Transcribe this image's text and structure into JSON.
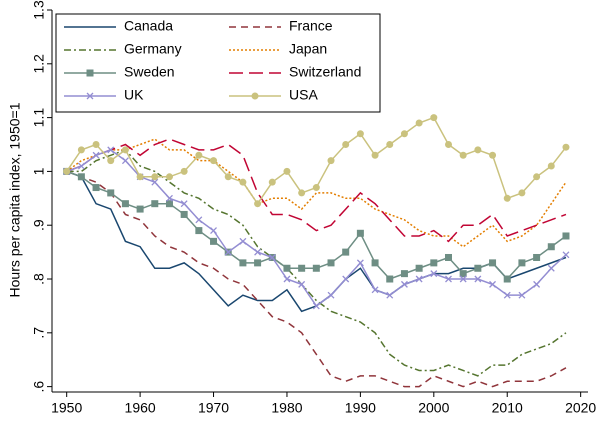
{
  "chart_data": {
    "type": "line",
    "y_label": "Hours per capita index, 1950=1",
    "x": [
      1950,
      1952,
      1954,
      1956,
      1958,
      1960,
      1962,
      1964,
      1966,
      1968,
      1970,
      1972,
      1974,
      1976,
      1978,
      1980,
      1982,
      1984,
      1986,
      1988,
      1990,
      1992,
      1994,
      1996,
      1998,
      2000,
      2002,
      2004,
      2006,
      2008,
      2010,
      2012,
      2014,
      2016,
      2018
    ],
    "xlim": [
      1948,
      2021
    ],
    "xticks": [
      1950,
      1960,
      1970,
      1980,
      1990,
      2000,
      2010,
      2020
    ],
    "ylim": [
      0.59,
      1.3
    ],
    "yticks": [
      {
        "value": 0.6,
        "label": ".6"
      },
      {
        "value": 0.7,
        "label": ".7"
      },
      {
        "value": 0.8,
        "label": ".8"
      },
      {
        "value": 0.9,
        "label": ".9"
      },
      1,
      1.1,
      1.2,
      1.3
    ],
    "series": [
      {
        "name": "Canada",
        "color": "#1a476f",
        "dash": "solid",
        "marker": "none",
        "values": [
          1.0,
          0.99,
          0.94,
          0.93,
          0.87,
          0.86,
          0.82,
          0.82,
          0.83,
          0.81,
          0.78,
          0.75,
          0.77,
          0.76,
          0.76,
          0.78,
          0.74,
          0.75,
          0.77,
          0.8,
          0.82,
          0.78,
          0.77,
          0.79,
          0.8,
          0.81,
          0.81,
          0.82,
          0.82,
          0.83,
          0.8,
          0.81,
          0.82,
          0.83,
          0.84
        ]
      },
      {
        "name": "France",
        "color": "#90353b",
        "dash": "dash",
        "marker": "none",
        "values": [
          1.0,
          0.99,
          0.98,
          0.96,
          0.92,
          0.91,
          0.88,
          0.86,
          0.85,
          0.83,
          0.82,
          0.8,
          0.79,
          0.76,
          0.73,
          0.72,
          0.7,
          0.66,
          0.62,
          0.61,
          0.62,
          0.62,
          0.61,
          0.6,
          0.6,
          0.62,
          0.61,
          0.6,
          0.61,
          0.6,
          0.61,
          0.61,
          0.61,
          0.62,
          0.635
        ]
      },
      {
        "name": "Germany",
        "color": "#55752f",
        "dash": "dashdot",
        "marker": "none",
        "values": [
          1.0,
          1.0,
          1.02,
          1.03,
          1.04,
          1.01,
          1.0,
          0.98,
          0.96,
          0.95,
          0.93,
          0.92,
          0.9,
          0.86,
          0.84,
          0.82,
          0.79,
          0.76,
          0.74,
          0.73,
          0.72,
          0.7,
          0.66,
          0.64,
          0.63,
          0.63,
          0.64,
          0.63,
          0.62,
          0.64,
          0.64,
          0.66,
          0.67,
          0.68,
          0.7
        ]
      },
      {
        "name": "Japan",
        "color": "#e37e00",
        "dash": "dot",
        "marker": "none",
        "values": [
          1.0,
          1.02,
          1.03,
          1.04,
          1.04,
          1.05,
          1.06,
          1.04,
          1.04,
          1.02,
          1.02,
          1.0,
          0.98,
          0.94,
          0.95,
          0.95,
          0.93,
          0.96,
          0.96,
          0.95,
          0.95,
          0.93,
          0.92,
          0.91,
          0.89,
          0.88,
          0.88,
          0.86,
          0.88,
          0.9,
          0.87,
          0.88,
          0.9,
          0.94,
          0.98
        ]
      },
      {
        "name": "Sweden",
        "color": "#6e8e84",
        "dash": "solid",
        "marker": "square",
        "values": [
          1.0,
          0.99,
          0.97,
          0.96,
          0.94,
          0.93,
          0.94,
          0.94,
          0.92,
          0.89,
          0.87,
          0.85,
          0.83,
          0.83,
          0.84,
          0.82,
          0.82,
          0.82,
          0.83,
          0.85,
          0.885,
          0.83,
          0.8,
          0.81,
          0.82,
          0.83,
          0.84,
          0.81,
          0.82,
          0.83,
          0.8,
          0.83,
          0.84,
          0.86,
          0.88
        ]
      },
      {
        "name": "Switzerland",
        "color": "#c10534",
        "dash": "longdash",
        "marker": "none",
        "values": [
          1.0,
          1.01,
          1.03,
          1.04,
          1.05,
          1.03,
          1.05,
          1.06,
          1.05,
          1.04,
          1.04,
          1.05,
          1.03,
          0.96,
          0.92,
          0.92,
          0.91,
          0.89,
          0.9,
          0.93,
          0.96,
          0.94,
          0.91,
          0.88,
          0.88,
          0.89,
          0.87,
          0.9,
          0.9,
          0.92,
          0.88,
          0.89,
          0.9,
          0.91,
          0.92
        ]
      },
      {
        "name": "UK",
        "color": "#938dd2",
        "dash": "solid",
        "marker": "x",
        "values": [
          1.0,
          1.01,
          1.03,
          1.04,
          1.02,
          0.99,
          0.98,
          0.95,
          0.94,
          0.91,
          0.89,
          0.85,
          0.87,
          0.85,
          0.84,
          0.8,
          0.79,
          0.75,
          0.77,
          0.8,
          0.83,
          0.78,
          0.77,
          0.79,
          0.8,
          0.81,
          0.8,
          0.8,
          0.8,
          0.79,
          0.77,
          0.77,
          0.79,
          0.82,
          0.845
        ]
      },
      {
        "name": "USA",
        "color": "#cac27e",
        "dash": "solid",
        "marker": "circle",
        "values": [
          1.0,
          1.04,
          1.05,
          1.02,
          1.04,
          0.99,
          0.99,
          0.99,
          1.0,
          1.03,
          1.02,
          0.99,
          0.98,
          0.94,
          0.98,
          1.0,
          0.96,
          0.97,
          1.02,
          1.05,
          1.07,
          1.03,
          1.05,
          1.07,
          1.09,
          1.1,
          1.05,
          1.03,
          1.04,
          1.03,
          0.95,
          0.96,
          0.99,
          1.01,
          1.045
        ]
      }
    ]
  }
}
